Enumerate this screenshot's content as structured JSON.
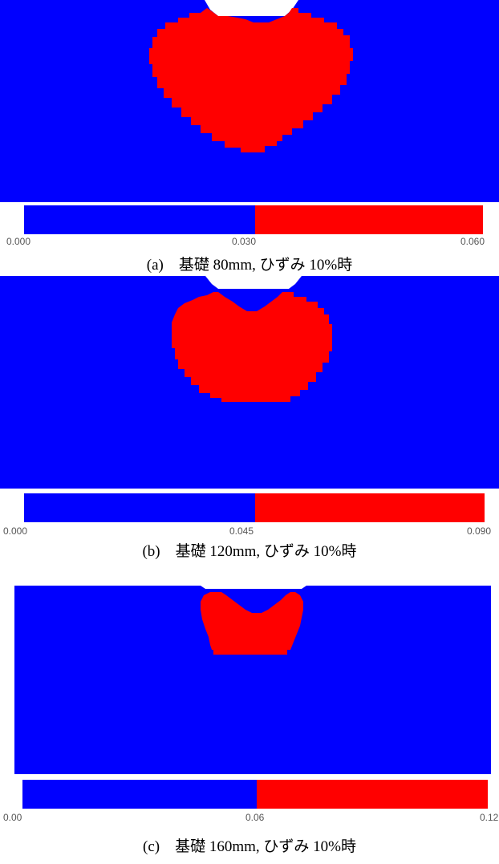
{
  "colors": {
    "low": "#0000ff",
    "high": "#ff0000",
    "background": "#ffffff"
  },
  "panels": [
    {
      "id": "a",
      "scale_ticks": [
        "0.000",
        "0.030",
        "0.060"
      ],
      "caption": "(a)　基礎 80mm, ひずみ 10%時"
    },
    {
      "id": "b",
      "scale_ticks": [
        "0.000",
        "0.045",
        "0.090"
      ],
      "caption": "(b)　基礎 120mm, ひずみ 10%時"
    },
    {
      "id": "c",
      "scale_ticks": [
        "0.00",
        "0.06",
        "0.12"
      ],
      "caption": "(c)　基礎 160mm, ひずみ 10%時"
    }
  ]
}
